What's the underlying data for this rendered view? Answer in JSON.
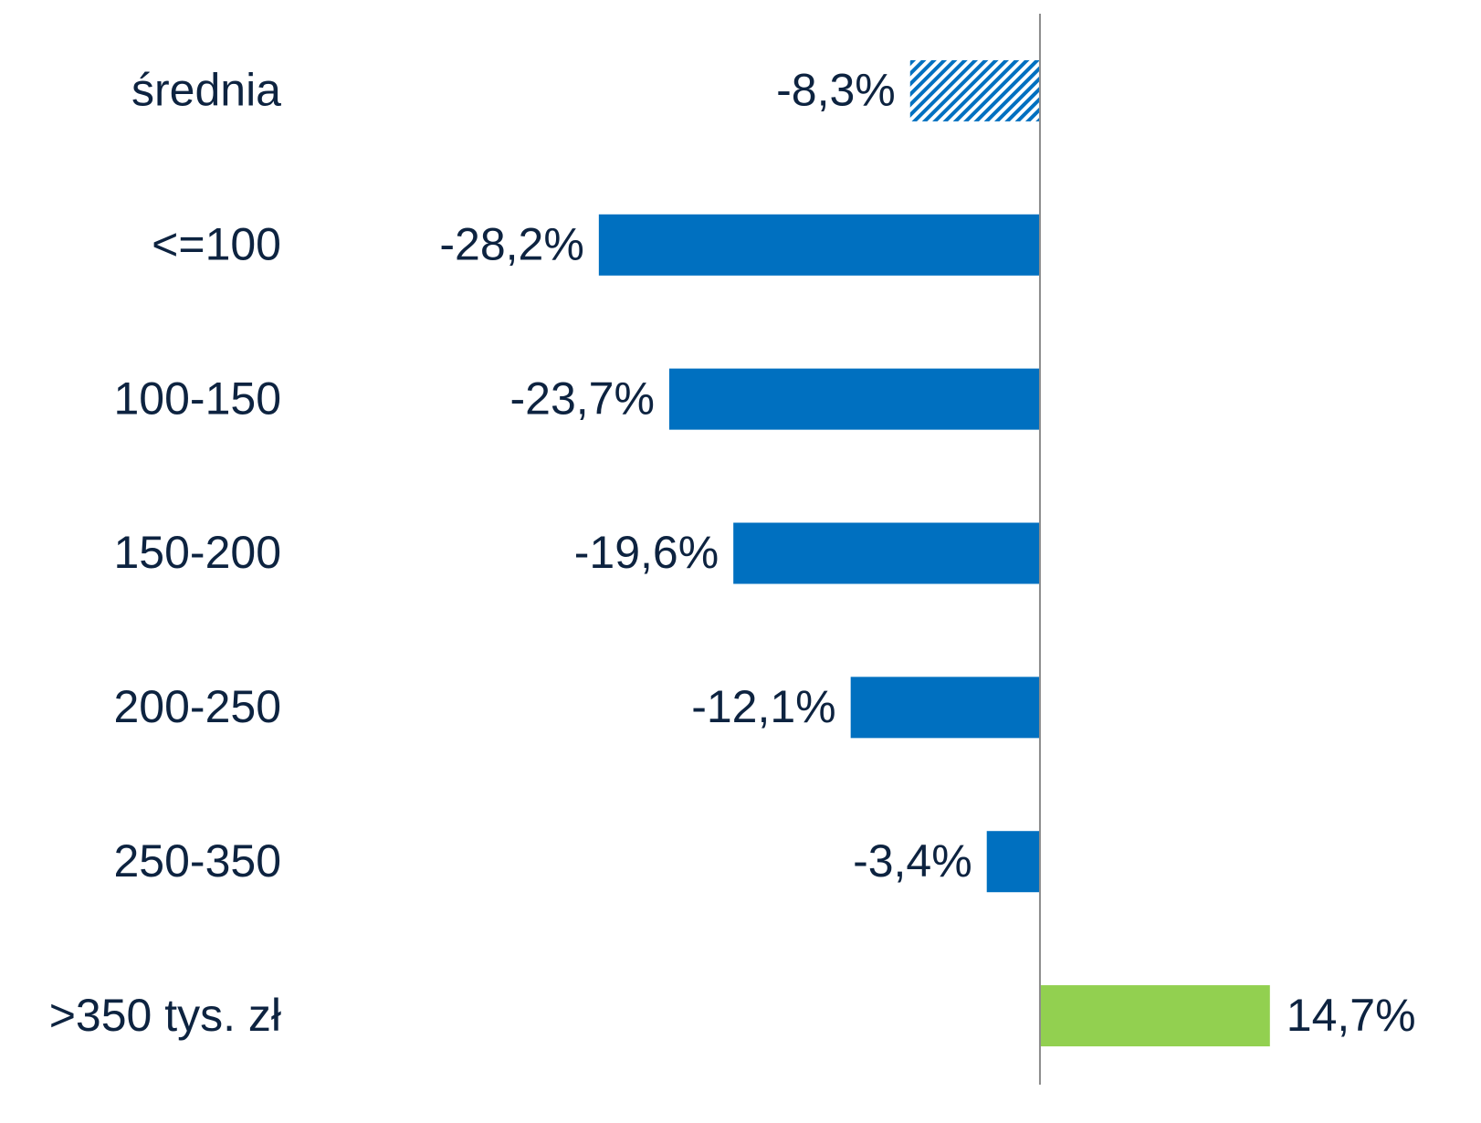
{
  "chart_data": {
    "type": "bar",
    "orientation": "horizontal",
    "categories": [
      "średnia",
      "<=100",
      "100-150",
      "150-200",
      "200-250",
      "250-350",
      ">350 tys. zł"
    ],
    "values": [
      -8.3,
      -28.2,
      -23.7,
      -19.6,
      -12.1,
      -3.4,
      14.7
    ],
    "value_labels": [
      "-8,3%",
      "-28,2%",
      "-23,7%",
      "-19,6%",
      "-12,1%",
      "-3,4%",
      "14,7%"
    ],
    "colors": [
      "#0070c0",
      "#0070c0",
      "#0070c0",
      "#0070c0",
      "#0070c0",
      "#0070c0",
      "#92d050"
    ],
    "hatched": [
      true,
      false,
      false,
      false,
      false,
      false,
      false
    ],
    "xlim": [
      -30,
      20
    ]
  }
}
